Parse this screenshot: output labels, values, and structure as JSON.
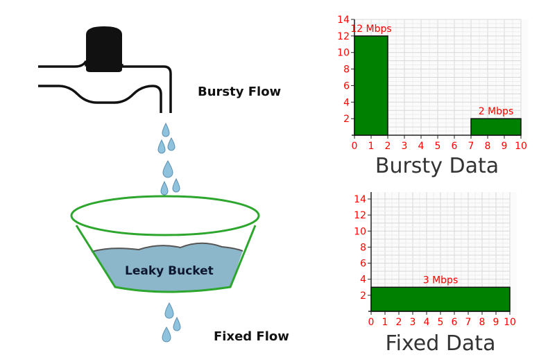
{
  "labels": {
    "bursty_flow": "Bursty Flow",
    "fixed_flow": "Fixed Flow",
    "bucket": "Leaky Bucket"
  },
  "colors": {
    "bar": "#008000",
    "tick_text": "#ff0000",
    "bucket_rim": "#2da62d",
    "water": "#8cb6c9",
    "drop": "#8fc3dd"
  },
  "chart_data": [
    {
      "type": "bar",
      "title": "Bursty Data",
      "x_ticks": [
        0,
        1,
        2,
        3,
        4,
        5,
        6,
        7,
        8,
        9,
        10
      ],
      "y_ticks": [
        2,
        4,
        6,
        8,
        10,
        12,
        14
      ],
      "xlim": [
        0,
        10
      ],
      "ylim": [
        0,
        14
      ],
      "grid": true,
      "bars": [
        {
          "x_start": 0,
          "x_end": 2,
          "value": 12,
          "label": "12 Mbps"
        },
        {
          "x_start": 7,
          "x_end": 10,
          "value": 2,
          "label": "2 Mbps"
        }
      ]
    },
    {
      "type": "bar",
      "title": "Fixed Data",
      "x_ticks": [
        0,
        1,
        2,
        3,
        4,
        5,
        6,
        7,
        8,
        9,
        10
      ],
      "y_ticks": [
        2,
        4,
        6,
        8,
        10,
        12,
        14
      ],
      "xlim": [
        0,
        10
      ],
      "ylim": [
        0,
        14
      ],
      "grid": true,
      "bars": [
        {
          "x_start": 0,
          "x_end": 10,
          "value": 3,
          "label": "3 Mbps"
        }
      ]
    }
  ]
}
